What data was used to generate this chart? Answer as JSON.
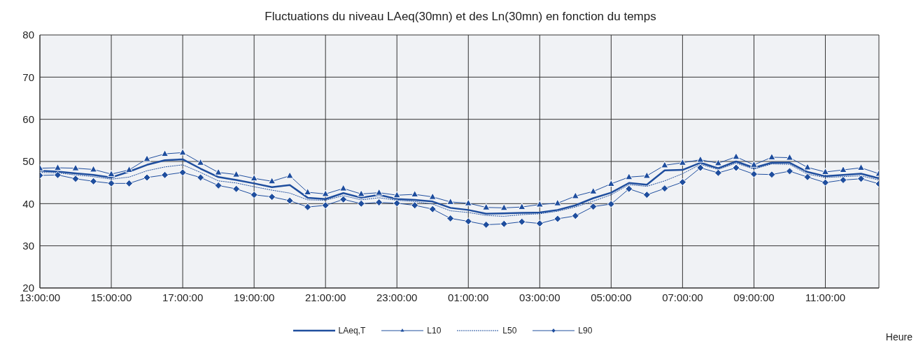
{
  "chart_data": {
    "type": "line",
    "title": "Fluctuations du niveau LAeq(30mn) et des Ln(30mn) en fonction du temps",
    "xlabel": "Heure",
    "x": [
      "2000-01-01T13:00",
      "2000-01-01T13:30",
      "2000-01-01T14:00",
      "2000-01-01T14:30",
      "2000-01-01T15:00",
      "2000-01-01T15:30",
      "2000-01-01T16:00",
      "2000-01-01T16:30",
      "2000-01-01T17:00",
      "2000-01-01T17:30",
      "2000-01-01T18:00",
      "2000-01-01T18:30",
      "2000-01-01T19:00",
      "2000-01-01T19:30",
      "2000-01-01T20:00",
      "2000-01-01T20:30",
      "2000-01-01T21:00",
      "2000-01-01T21:30",
      "2000-01-01T22:00",
      "2000-01-01T22:30",
      "2000-01-01T23:00",
      "2000-01-01T23:30",
      "2000-01-02T00:00",
      "2000-01-02T00:30",
      "2000-01-02T01:00",
      "2000-01-02T01:30",
      "2000-01-02T02:00",
      "2000-01-02T02:30",
      "2000-01-02T03:00",
      "2000-01-02T03:30",
      "2000-01-02T04:00",
      "2000-01-02T04:30",
      "2000-01-02T05:00",
      "2000-01-02T05:30",
      "2000-01-02T06:00",
      "2000-01-02T06:30",
      "2000-01-02T07:00",
      "2000-01-02T07:30",
      "2000-01-02T08:00",
      "2000-01-02T08:30",
      "2000-01-02T09:00",
      "2000-01-02T09:30",
      "2000-01-02T10:00",
      "2000-01-02T10:30",
      "2000-01-02T11:00",
      "2000-01-02T11:30",
      "2000-01-02T12:00",
      "2000-01-02T12:30"
    ],
    "series": [
      {
        "name": "LAeq,T",
        "color": "#1f4e9e",
        "line_style": "solid",
        "marker": "none",
        "values": [
          47.8,
          47.6,
          47.2,
          46.8,
          46.2,
          47.6,
          49.2,
          50.3,
          50.5,
          48.3,
          46.3,
          45.6,
          44.8,
          43.9,
          44.4,
          41.4,
          41.1,
          42.5,
          41.4,
          42.1,
          41.1,
          40.9,
          40.5,
          39.0,
          38.5,
          37.6,
          37.7,
          37.8,
          37.9,
          38.5,
          39.6,
          41.3,
          42.6,
          44.9,
          44.5,
          47.9,
          48.0,
          49.7,
          48.4,
          50.0,
          48.5,
          49.7,
          49.7,
          47.5,
          46.5,
          46.8,
          47.1,
          46.0
        ]
      },
      {
        "name": "L10",
        "color": "#1f4e9e",
        "line_style": "solid",
        "marker": "triangle",
        "values": [
          48.4,
          48.5,
          48.4,
          48.1,
          47.0,
          48.0,
          50.6,
          51.8,
          52.1,
          49.7,
          47.4,
          46.9,
          46.0,
          45.3,
          46.6,
          42.7,
          42.3,
          43.6,
          42.3,
          42.6,
          42.0,
          42.2,
          41.6,
          40.4,
          40.1,
          39.1,
          39.0,
          39.2,
          39.8,
          40.1,
          41.8,
          42.9,
          44.7,
          46.3,
          46.6,
          49.1,
          49.7,
          50.4,
          49.6,
          51.1,
          49.2,
          51.0,
          50.9,
          48.6,
          47.5,
          48.0,
          48.5,
          47.1
        ]
      },
      {
        "name": "L50",
        "color": "#1f4e9e",
        "line_style": "dotted",
        "marker": "none",
        "values": [
          47.4,
          47.3,
          46.8,
          46.4,
          45.8,
          46.3,
          47.8,
          48.7,
          49.2,
          47.4,
          45.4,
          44.9,
          44.0,
          43.2,
          42.5,
          40.9,
          40.8,
          41.9,
          40.9,
          41.4,
          40.8,
          40.5,
          39.9,
          38.3,
          37.9,
          37.2,
          37.0,
          37.4,
          37.6,
          38.2,
          39.2,
          40.6,
          42.1,
          44.5,
          44.1,
          45.4,
          47.1,
          49.3,
          48.1,
          49.6,
          48.2,
          49.4,
          49.3,
          47.0,
          46.2,
          46.4,
          46.6,
          45.6
        ]
      },
      {
        "name": "L90",
        "color": "#1f4e9e",
        "line_style": "solid",
        "marker": "diamond",
        "values": [
          46.7,
          46.8,
          45.9,
          45.3,
          44.8,
          44.8,
          46.2,
          46.8,
          47.4,
          46.2,
          44.3,
          43.5,
          42.1,
          41.6,
          40.7,
          39.2,
          39.6,
          41.0,
          40.0,
          40.3,
          40.1,
          39.6,
          38.7,
          36.5,
          35.8,
          35.0,
          35.2,
          35.7,
          35.3,
          36.4,
          37.1,
          39.3,
          39.9,
          43.5,
          42.1,
          43.6,
          45.1,
          48.5,
          47.3,
          48.5,
          47.0,
          46.9,
          47.7,
          46.3,
          45.0,
          45.6,
          45.9,
          44.7
        ]
      }
    ],
    "xlim": [
      "2000-01-01T13:00",
      "2000-01-02T12:30"
    ],
    "xticks": [
      {
        "value": "2000-01-01T13:00",
        "label": "13:00:00"
      },
      {
        "value": "2000-01-01T15:00",
        "label": "15:00:00"
      },
      {
        "value": "2000-01-01T17:00",
        "label": "17:00:00"
      },
      {
        "value": "2000-01-01T19:00",
        "label": "19:00:00"
      },
      {
        "value": "2000-01-01T21:00",
        "label": "21:00:00"
      },
      {
        "value": "2000-01-01T23:00",
        "label": "23:00:00"
      },
      {
        "value": "2000-01-02T01:00",
        "label": "01:00:00"
      },
      {
        "value": "2000-01-02T03:00",
        "label": "03:00:00"
      },
      {
        "value": "2000-01-02T05:00",
        "label": "05:00:00"
      },
      {
        "value": "2000-01-02T07:00",
        "label": "07:00:00"
      },
      {
        "value": "2000-01-02T09:00",
        "label": "09:00:00"
      },
      {
        "value": "2000-01-02T11:00",
        "label": "11:00:00"
      }
    ],
    "ylim": [
      20,
      80
    ],
    "yticks": [
      20,
      30,
      40,
      50,
      60,
      70,
      80
    ],
    "grid": true,
    "legend": "bottom"
  }
}
